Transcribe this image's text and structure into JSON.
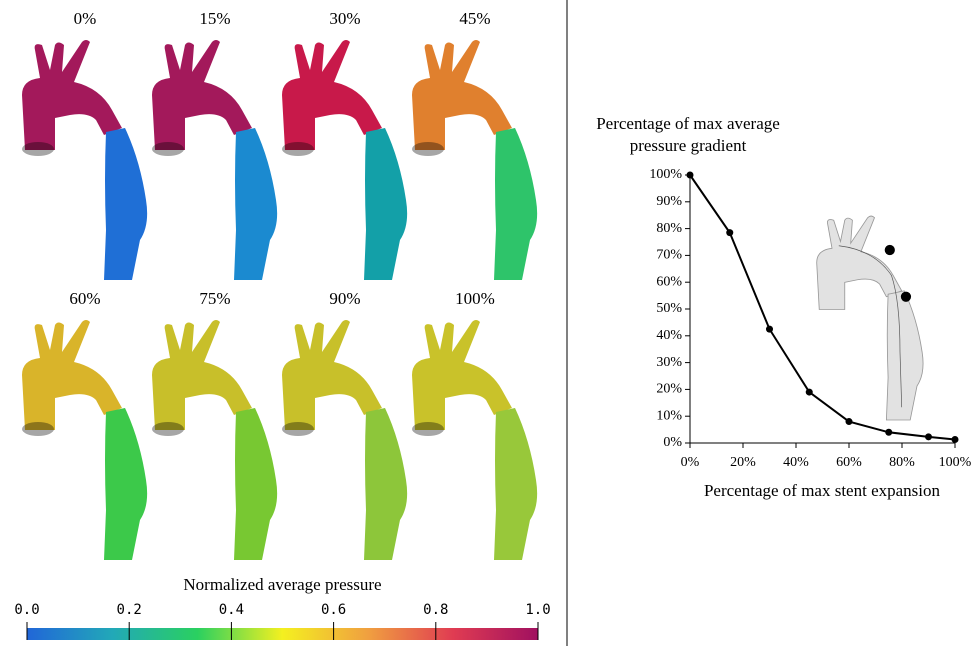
{
  "renderings": [
    {
      "label": "0%",
      "arch_color": "#a3195b",
      "desc_color": "#1f6fd6"
    },
    {
      "label": "15%",
      "arch_color": "#a3195b",
      "desc_color": "#1b8ad0"
    },
    {
      "label": "30%",
      "arch_color": "#c8194a",
      "desc_color": "#13a0a8"
    },
    {
      "label": "45%",
      "arch_color": "#e0802e",
      "desc_color": "#2ec46a"
    },
    {
      "label": "60%",
      "arch_color": "#d9b42a",
      "desc_color": "#3cc94a"
    },
    {
      "label": "75%",
      "arch_color": "#c8bf2a",
      "desc_color": "#78c832"
    },
    {
      "label": "90%",
      "arch_color": "#c8c02a",
      "desc_color": "#8dc63a"
    },
    {
      "label": "100%",
      "arch_color": "#c9c22a",
      "desc_color": "#98c83a"
    }
  ],
  "chart_data": [
    {
      "type": "line",
      "ylabel": [
        "Percentage of max average",
        "pressure gradient"
      ],
      "xlabel": "Percentage of max stent expansion",
      "x": [
        0,
        15,
        30,
        45,
        60,
        75,
        90,
        100
      ],
      "values": [
        100,
        78.5,
        42.5,
        19,
        8,
        4,
        2.3,
        1.3
      ],
      "color": "#000000",
      "xlim": [
        0,
        100
      ],
      "xticks": [
        {
          "value": 0,
          "label": "0%"
        },
        {
          "value": 20,
          "label": "20%"
        },
        {
          "value": 40,
          "label": "40%"
        },
        {
          "value": 60,
          "label": "60%"
        },
        {
          "value": 80,
          "label": "80%"
        },
        {
          "value": 100,
          "label": "100%"
        }
      ],
      "ylim": [
        0,
        100
      ],
      "yticks": [
        {
          "value": 0,
          "label": "0%"
        },
        {
          "value": 10,
          "label": "10%"
        },
        {
          "value": 20,
          "label": "20%"
        },
        {
          "value": 30,
          "label": "30%"
        },
        {
          "value": 40,
          "label": "40%"
        },
        {
          "value": 50,
          "label": "50%"
        },
        {
          "value": 60,
          "label": "60%"
        },
        {
          "value": 70,
          "label": "70%"
        },
        {
          "value": 80,
          "label": "80%"
        },
        {
          "value": 90,
          "label": "90%"
        },
        {
          "value": 100,
          "label": "100%"
        }
      ]
    },
    {
      "type": "colorbar",
      "title": "Normalized average pressure",
      "xlim": [
        0,
        1
      ],
      "xticks": [
        {
          "value": 0,
          "label": "0.0"
        },
        {
          "value": 0.2,
          "label": "0.2"
        },
        {
          "value": 0.4,
          "label": "0.4"
        },
        {
          "value": 0.6,
          "label": "0.6"
        },
        {
          "value": 0.8,
          "label": "0.8"
        },
        {
          "value": 1,
          "label": "1.0"
        }
      ],
      "colors": [
        "#2166d8",
        "#22a8b8",
        "#2ad060",
        "#f4f020",
        "#f0a040",
        "#e03c52",
        "#a01060"
      ]
    }
  ]
}
